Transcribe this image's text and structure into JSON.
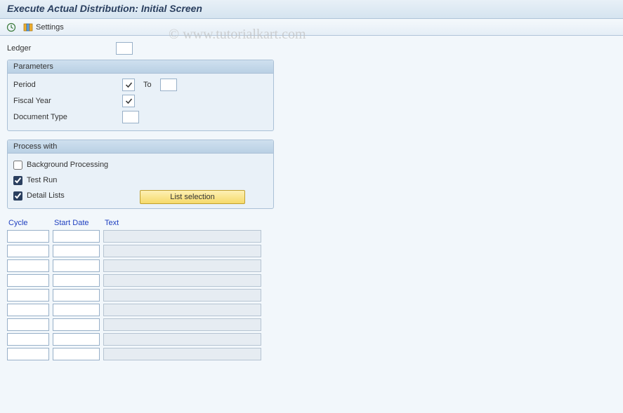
{
  "title": "Execute Actual Distribution: Initial Screen",
  "watermark": "© www.tutorialkart.com",
  "toolbar": {
    "settings_label": "Settings"
  },
  "fields": {
    "ledger_label": "Ledger",
    "ledger_value": ""
  },
  "parameters": {
    "group_title": "Parameters",
    "period_label": "Period",
    "period_from_checked": true,
    "to_label": "To",
    "period_to_value": "",
    "fiscal_year_label": "Fiscal Year",
    "fiscal_year_checked": true,
    "doc_type_label": "Document Type",
    "doc_type_value": ""
  },
  "process_with": {
    "group_title": "Process with",
    "background_label": "Background Processing",
    "background_checked": false,
    "testrun_label": "Test Run",
    "testrun_checked": true,
    "detail_label": "Detail Lists",
    "detail_checked": true,
    "list_selection_label": "List selection"
  },
  "table": {
    "headers": {
      "cycle": "Cycle",
      "start_date": "Start Date",
      "text": "Text"
    },
    "row_count": 9
  },
  "colors": {
    "background": "#f2f7fb",
    "header_gradient_top": "#e8f0f7",
    "header_gradient_bottom": "#d5e4f0",
    "group_border": "#aac0d6",
    "group_header_top": "#cfe0ef",
    "group_header_bottom": "#b9d0e4",
    "button_top": "#fdf0b4",
    "button_bottom": "#f6da6a",
    "button_border": "#c0a030",
    "link_color": "#2040c0",
    "input_border": "#98b0c8",
    "readonly_bg": "#e6ecf2"
  }
}
